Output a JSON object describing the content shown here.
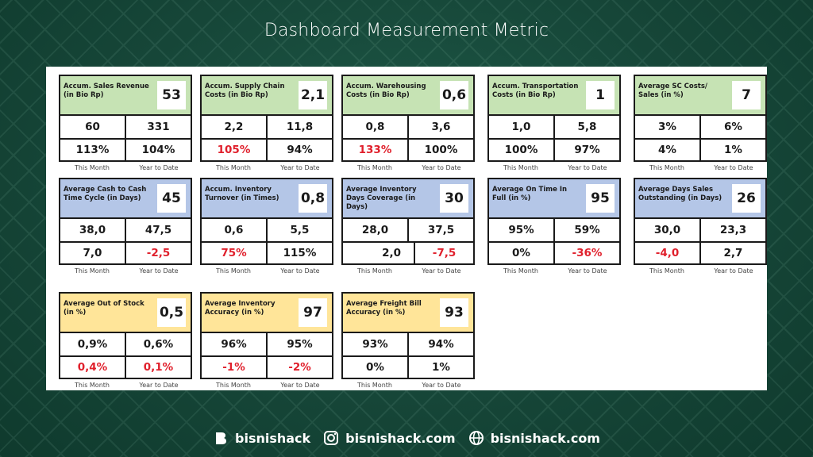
{
  "title": "Dashboard Measurement Metric",
  "cards": [
    {
      "label": "Accum. Sales Revenue (in Bio Rp)",
      "value": "53",
      "r1": [
        "60",
        "331"
      ],
      "r2": [
        "113%",
        "104%"
      ],
      "r2red": [
        false,
        false
      ],
      "r2right": [
        false,
        false
      ],
      "theme": "green"
    },
    {
      "label": "Accum. Supply Chain Costs (in Bio Rp)",
      "value": "2,1",
      "r1": [
        "2,2",
        "11,8"
      ],
      "r2": [
        "105%",
        "94%"
      ],
      "r2red": [
        true,
        false
      ],
      "r2right": [
        false,
        false
      ],
      "theme": "green"
    },
    {
      "label": "Accum. Warehousing Costs (in Bio Rp)",
      "value": "0,6",
      "r1": [
        "0,8",
        "3,6"
      ],
      "r2": [
        "133%",
        "100%"
      ],
      "r2red": [
        true,
        false
      ],
      "r2right": [
        false,
        false
      ],
      "theme": "green"
    },
    {
      "label": "Accum. Transportation Costs (in Bio Rp)",
      "value": "1",
      "r1": [
        "1,0",
        "5,8"
      ],
      "r2": [
        "100%",
        "97%"
      ],
      "r2red": [
        false,
        false
      ],
      "r2right": [
        false,
        false
      ],
      "theme": "green"
    },
    {
      "label": "Average SC Costs/ Sales (in %)",
      "value": "7",
      "r1": [
        "3%",
        "6%"
      ],
      "r2": [
        "4%",
        "1%"
      ],
      "r2red": [
        false,
        false
      ],
      "r2right": [
        false,
        false
      ],
      "theme": "green"
    },
    {
      "label": "Average Cash to Cash Time Cycle (in Days)",
      "value": "45",
      "r1": [
        "38,0",
        "47,5"
      ],
      "r2": [
        "7,0",
        "-2,5"
      ],
      "r2red": [
        false,
        true
      ],
      "r2right": [
        false,
        false
      ],
      "theme": "blue"
    },
    {
      "label": "Accum. Inventory Turnover (in Times)",
      "value": "0,8",
      "r1": [
        "0,6",
        "5,5"
      ],
      "r2": [
        "75%",
        "115%"
      ],
      "r2red": [
        true,
        false
      ],
      "r2right": [
        false,
        false
      ],
      "theme": "blue"
    },
    {
      "label": "Average Inventory Days Coverage (in Days)",
      "value": "30",
      "r1": [
        "28,0",
        "37,5"
      ],
      "r2": [
        "2,0",
        "-7,5"
      ],
      "r2red": [
        false,
        true
      ],
      "r2right": [
        true,
        false
      ],
      "theme": "blue"
    },
    {
      "label": "Average On Time In Full (in %)",
      "value": "95",
      "r1": [
        "95%",
        "59%"
      ],
      "r2": [
        "0%",
        "-36%"
      ],
      "r2red": [
        false,
        true
      ],
      "r2right": [
        false,
        false
      ],
      "theme": "blue"
    },
    {
      "label": "Average Days Sales Outstanding (in Days)",
      "value": "26",
      "r1": [
        "30,0",
        "23,3"
      ],
      "r2": [
        "-4,0",
        "2,7"
      ],
      "r2red": [
        true,
        false
      ],
      "r2right": [
        false,
        false
      ],
      "theme": "blue"
    },
    {
      "label": "Average Out of Stock (in %)",
      "value": "0,5",
      "r1": [
        "0,9%",
        "0,6%"
      ],
      "r2": [
        "0,4%",
        "0,1%"
      ],
      "r2red": [
        true,
        true
      ],
      "r2right": [
        false,
        false
      ],
      "theme": "yellow"
    },
    {
      "label": "Average Inventory Accuracy (in %)",
      "value": "97",
      "r1": [
        "96%",
        "95%"
      ],
      "r2": [
        "-1%",
        "-2%"
      ],
      "r2red": [
        true,
        true
      ],
      "r2right": [
        false,
        false
      ],
      "theme": "yellow"
    },
    {
      "label": "Average Freight Bill Accuracy (in %)",
      "value": "93",
      "r1": [
        "93%",
        "94%"
      ],
      "r2": [
        "0%",
        "1%"
      ],
      "r2red": [
        false,
        false
      ],
      "r2right": [
        false,
        false
      ],
      "theme": "yellow"
    }
  ],
  "captions": {
    "left": "This Month",
    "right": "Year to Date"
  },
  "footer": {
    "brand": "bisnishack",
    "instagram": "bisnishack.com",
    "website": "bisnishack.com"
  }
}
